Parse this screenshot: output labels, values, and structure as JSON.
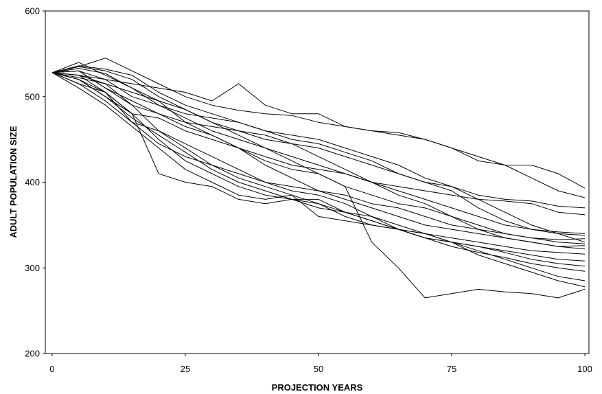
{
  "chart_data": {
    "type": "line",
    "title": "",
    "xlabel": "PROJECTION YEARS",
    "ylabel": "ADULT POPULATION SIZE",
    "xlim": [
      0,
      100
    ],
    "ylim": [
      200,
      600
    ],
    "xticks": [
      0,
      25,
      50,
      75,
      100
    ],
    "yticks": [
      200,
      300,
      400,
      500,
      600
    ],
    "grid": false,
    "legend": "none",
    "line_color": "#000000",
    "series": [
      {
        "x": [
          0,
          5,
          10,
          15,
          20,
          25,
          30,
          35,
          40,
          45,
          50,
          55,
          60,
          65,
          70,
          75,
          80,
          85,
          90,
          95,
          100
        ],
        "values": [
          528,
          535,
          545,
          530,
          515,
          500,
          490,
          484,
          480,
          478,
          470,
          465,
          460,
          455,
          450,
          440,
          425,
          420,
          420,
          410,
          393
        ]
      },
      {
        "x": [
          0,
          5,
          10,
          15,
          20,
          25,
          30,
          35,
          40,
          45,
          50,
          55,
          60,
          65,
          70,
          75,
          80,
          85,
          90,
          95,
          100
        ],
        "values": [
          528,
          530,
          520,
          515,
          510,
          505,
          495,
          515,
          490,
          480,
          480,
          465,
          460,
          458,
          450,
          440,
          430,
          420,
          405,
          390,
          382
        ]
      },
      {
        "x": [
          0,
          5,
          10,
          15,
          20,
          25,
          30,
          35,
          40,
          45,
          50,
          55,
          60,
          65,
          70,
          75,
          80,
          85,
          90,
          95,
          100
        ],
        "values": [
          528,
          525,
          515,
          490,
          480,
          470,
          465,
          460,
          455,
          445,
          440,
          430,
          420,
          410,
          400,
          395,
          385,
          380,
          378,
          372,
          370
        ]
      },
      {
        "x": [
          0,
          5,
          10,
          15,
          20,
          25,
          30,
          35,
          40,
          45,
          50,
          55,
          60,
          65,
          70,
          75,
          80,
          85,
          90,
          95,
          100
        ],
        "values": [
          528,
          520,
          505,
          480,
          475,
          460,
          450,
          440,
          430,
          420,
          415,
          410,
          400,
          395,
          390,
          385,
          380,
          378,
          375,
          365,
          362
        ]
      },
      {
        "x": [
          0,
          5,
          10,
          15,
          20,
          25,
          30,
          35,
          40,
          45,
          50,
          55,
          60,
          65,
          70,
          75,
          80,
          85,
          90,
          95,
          100
        ],
        "values": [
          528,
          535,
          530,
          520,
          500,
          485,
          470,
          460,
          450,
          445,
          430,
          415,
          400,
          390,
          380,
          370,
          360,
          350,
          345,
          342,
          340
        ]
      },
      {
        "x": [
          0,
          5,
          10,
          15,
          20,
          25,
          30,
          35,
          40,
          45,
          50,
          55,
          60,
          65,
          70,
          75,
          80,
          85,
          90,
          95,
          100
        ],
        "values": [
          528,
          540,
          525,
          510,
          495,
          470,
          455,
          440,
          420,
          405,
          390,
          385,
          375,
          370,
          360,
          350,
          345,
          340,
          335,
          333,
          334
        ]
      },
      {
        "x": [
          0,
          5,
          10,
          15,
          20,
          25,
          30,
          35,
          40,
          45,
          50,
          55,
          60,
          65,
          70,
          75,
          80,
          85,
          90,
          95,
          100
        ],
        "values": [
          528,
          530,
          510,
          495,
          480,
          465,
          455,
          440,
          425,
          415,
          410,
          395,
          385,
          375,
          370,
          360,
          350,
          340,
          335,
          330,
          328
        ]
      },
      {
        "x": [
          0,
          5,
          10,
          15,
          20,
          25,
          30,
          35,
          40,
          45,
          50,
          55,
          60,
          65,
          70,
          75,
          80,
          85,
          90,
          95,
          100
        ],
        "values": [
          528,
          515,
          505,
          470,
          460,
          440,
          420,
          410,
          400,
          395,
          390,
          380,
          370,
          360,
          350,
          345,
          340,
          335,
          330,
          325,
          322
        ]
      },
      {
        "x": [
          0,
          5,
          10,
          15,
          20,
          25,
          30,
          35,
          40,
          45,
          50,
          55,
          60,
          65,
          70,
          75,
          80,
          85,
          90,
          95,
          100
        ],
        "values": [
          528,
          520,
          500,
          475,
          455,
          435,
          415,
          400,
          390,
          380,
          380,
          365,
          355,
          345,
          340,
          335,
          330,
          325,
          320,
          318,
          316
        ]
      },
      {
        "x": [
          0,
          5,
          10,
          15,
          20,
          25,
          30,
          35,
          40,
          45,
          50,
          55,
          60,
          65,
          70,
          75,
          80,
          85,
          90,
          95,
          100
        ],
        "values": [
          528,
          525,
          505,
          480,
          450,
          425,
          410,
          395,
          385,
          380,
          375,
          360,
          350,
          345,
          335,
          330,
          325,
          320,
          315,
          310,
          308
        ]
      },
      {
        "x": [
          0,
          5,
          10,
          15,
          20,
          25,
          30,
          35,
          40,
          45,
          50,
          55,
          60,
          65,
          70,
          75,
          80,
          85,
          90,
          95,
          100
        ],
        "values": [
          528,
          530,
          510,
          490,
          460,
          445,
          430,
          415,
          400,
          390,
          385,
          375,
          360,
          345,
          335,
          330,
          325,
          318,
          310,
          305,
          302
        ]
      },
      {
        "x": [
          0,
          5,
          10,
          15,
          20,
          25,
          30,
          35,
          40,
          45,
          50,
          55,
          60,
          65,
          70,
          75,
          80,
          85,
          90,
          95,
          100
        ],
        "values": [
          528,
          515,
          495,
          470,
          445,
          430,
          420,
          405,
          395,
          385,
          375,
          365,
          355,
          345,
          335,
          325,
          318,
          312,
          305,
          300,
          296
        ]
      },
      {
        "x": [
          0,
          5,
          10,
          15,
          20,
          25,
          30,
          35,
          40,
          45,
          50,
          55,
          60,
          65,
          70,
          75,
          80,
          85,
          90,
          95,
          100
        ],
        "values": [
          528,
          520,
          500,
          480,
          410,
          400,
          395,
          380,
          375,
          380,
          370,
          365,
          360,
          350,
          340,
          330,
          320,
          310,
          300,
          290,
          285
        ]
      },
      {
        "x": [
          0,
          5,
          10,
          15,
          20,
          25,
          30,
          35,
          40,
          45,
          50,
          55,
          60,
          65,
          70,
          75,
          80,
          85,
          90,
          95,
          100
        ],
        "values": [
          528,
          510,
          490,
          465,
          440,
          415,
          400,
          385,
          380,
          385,
          360,
          355,
          350,
          345,
          340,
          330,
          315,
          305,
          295,
          285,
          278
        ]
      },
      {
        "x": [
          0,
          5,
          10,
          15,
          20,
          25,
          30,
          35,
          40,
          45,
          50,
          55,
          60,
          65,
          70,
          75,
          80,
          85,
          90,
          95,
          100
        ],
        "values": [
          528,
          522,
          515,
          505,
          495,
          485,
          470,
          455,
          440,
          425,
          410,
          395,
          330,
          300,
          265,
          270,
          275,
          272,
          270,
          265,
          275
        ]
      },
      {
        "x": [
          0,
          5,
          10,
          15,
          20,
          25,
          30,
          35,
          40,
          45,
          50,
          55,
          60,
          65,
          70,
          75,
          80,
          85,
          90,
          95,
          100
        ],
        "values": [
          528,
          525,
          520,
          500,
          490,
          475,
          460,
          450,
          440,
          430,
          420,
          410,
          400,
          385,
          375,
          360,
          345,
          335,
          330,
          325,
          326
        ]
      },
      {
        "x": [
          0,
          5,
          10,
          15,
          20,
          25,
          30,
          35,
          40,
          45,
          50,
          55,
          60,
          65,
          70,
          75,
          80,
          85,
          90,
          95,
          100
        ],
        "values": [
          528,
          536,
          532,
          525,
          505,
          490,
          480,
          470,
          460,
          450,
          445,
          435,
          425,
          410,
          400,
          390,
          370,
          355,
          345,
          340,
          338
        ]
      },
      {
        "x": [
          0,
          5,
          10,
          15,
          20,
          25,
          30,
          35,
          40,
          45,
          50,
          55,
          60,
          65,
          70,
          75,
          80,
          85,
          90,
          95,
          100
        ],
        "values": [
          528,
          533,
          527,
          510,
          490,
          480,
          475,
          470,
          460,
          455,
          450,
          440,
          430,
          420,
          405,
          395,
          380,
          365,
          350,
          340,
          330
        ]
      }
    ]
  }
}
